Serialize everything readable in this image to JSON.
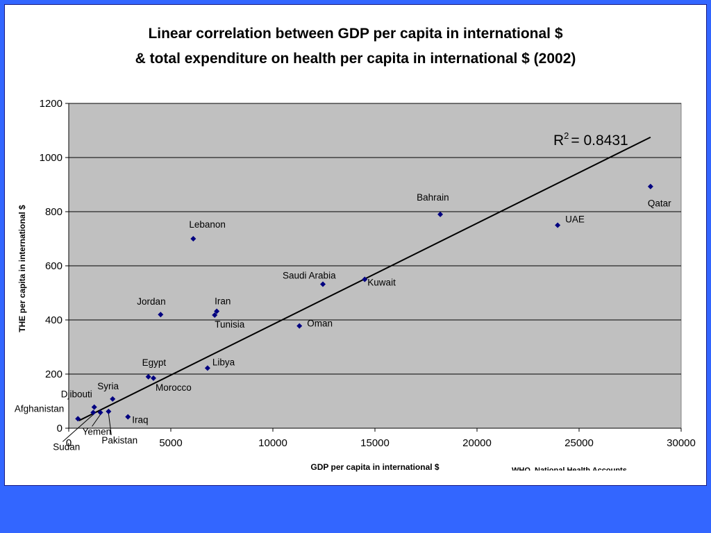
{
  "chart_data": {
    "type": "scatter",
    "title_lines": [
      "Linear correlation between GDP per capita in international $",
      "& total expenditure on health per capita in international $ (2002)"
    ],
    "xlabel": "GDP per capita in international $",
    "ylabel": "THE per capita in international $",
    "xlim": [
      0,
      30000
    ],
    "ylim": [
      0,
      1200
    ],
    "xticks": [
      0,
      5000,
      10000,
      15000,
      20000,
      25000,
      30000
    ],
    "yticks": [
      0,
      200,
      400,
      600,
      800,
      1000,
      1200
    ],
    "grid": "horizontal",
    "plot_background": "#c0c0c0",
    "marker_color": "#000080",
    "r_squared_label": "= 0.8431",
    "r_squared_prefix": "R",
    "r_squared_sup": "2",
    "trendline": {
      "x": [
        500,
        28500
      ],
      "y": [
        28,
        1075
      ]
    },
    "source_note": "WHO, National Health Accounts",
    "points": [
      {
        "label": "Afghanistan",
        "x": 450,
        "y": 35
      },
      {
        "label": "Sudan",
        "x": 1200,
        "y": 58
      },
      {
        "label": "Djibouti",
        "x": 1250,
        "y": 78
      },
      {
        "label": "Yemen",
        "x": 1550,
        "y": 58
      },
      {
        "label": "Pakistan",
        "x": 1950,
        "y": 62
      },
      {
        "label": "Syria",
        "x": 2150,
        "y": 108
      },
      {
        "label": "Iraq",
        "x": 2900,
        "y": 42
      },
      {
        "label": "Egypt",
        "x": 3900,
        "y": 190
      },
      {
        "label": "Morocco",
        "x": 4150,
        "y": 185
      },
      {
        "label": "Jordan",
        "x": 4500,
        "y": 420
      },
      {
        "label": "Lebanon",
        "x": 6100,
        "y": 700
      },
      {
        "label": "Libya",
        "x": 6800,
        "y": 222
      },
      {
        "label": "Tunisia",
        "x": 7150,
        "y": 418
      },
      {
        "label": "Iran",
        "x": 7250,
        "y": 432
      },
      {
        "label": "Oman",
        "x": 11300,
        "y": 378
      },
      {
        "label": "Saudi Arabia",
        "x": 12450,
        "y": 532
      },
      {
        "label": "Kuwait",
        "x": 14500,
        "y": 550
      },
      {
        "label": "Bahrain",
        "x": 18200,
        "y": 790
      },
      {
        "label": "UAE",
        "x": 23950,
        "y": 750
      },
      {
        "label": "Qatar",
        "x": 28500,
        "y": 893
      }
    ]
  }
}
